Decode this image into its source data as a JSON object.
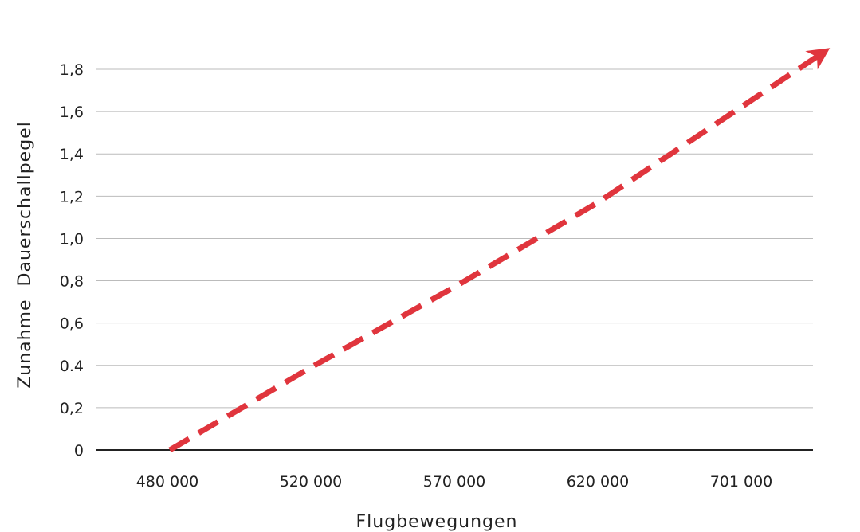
{
  "chart_data": {
    "type": "line",
    "categories": [
      "480 000",
      "520 000",
      "570 000",
      "620 000",
      "701 000"
    ],
    "y_tick_labels": [
      "0",
      "0,2",
      "0.4",
      "0,6",
      "0,8",
      "1,0",
      "1,2",
      "1,4",
      "1,6",
      "1,8"
    ],
    "ylim": [
      0,
      1.8
    ],
    "xlabel": "Flugbewegungen",
    "ylabel": "Zunahme  Dauerschallpegel",
    "series": [
      {
        "values": [
          0,
          0.39,
          0.77,
          1.17,
          1.86
        ],
        "style": "dashed-arrow",
        "color": "#e0353d"
      }
    ],
    "grid": true,
    "colors": {
      "line": "#e0353d",
      "grid": "#bbbbbb",
      "axis": "#222222"
    }
  }
}
